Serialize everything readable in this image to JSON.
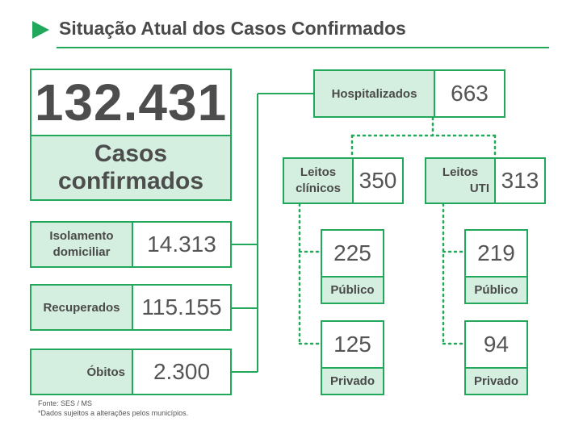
{
  "header": {
    "title": "Situação Atual dos Casos Confirmados"
  },
  "total": {
    "value": "132.431",
    "label_line1": "Casos",
    "label_line2": "confirmados"
  },
  "isolamento": {
    "label_line1": "Isolamento",
    "label_line2": "domiciliar",
    "value": "14.313"
  },
  "recuperados": {
    "label": "Recuperados",
    "value": "115.155"
  },
  "obitos": {
    "label": "Óbitos",
    "value": "2.300"
  },
  "hospitalizados": {
    "label": "Hospitalizados",
    "value": "663"
  },
  "leitos_clinicos": {
    "label_line1": "Leitos",
    "label_line2": "clínicos",
    "value": "350",
    "publico": {
      "value": "225",
      "label": "Público"
    },
    "privado": {
      "value": "125",
      "label": "Privado"
    }
  },
  "leitos_uti": {
    "label_line1": "Leitos",
    "label_line2": "UTI",
    "value": "313",
    "publico": {
      "value": "219",
      "label": "Público"
    },
    "privado": {
      "value": "94",
      "label": "Privado"
    }
  },
  "footer": {
    "source": "Fonte: SES / MS",
    "note": "*Dados sujeitos a alterações pelos municípios."
  },
  "colors": {
    "accent": "#22a85a",
    "fill": "#d4efdf",
    "text": "#4a4a4a"
  }
}
